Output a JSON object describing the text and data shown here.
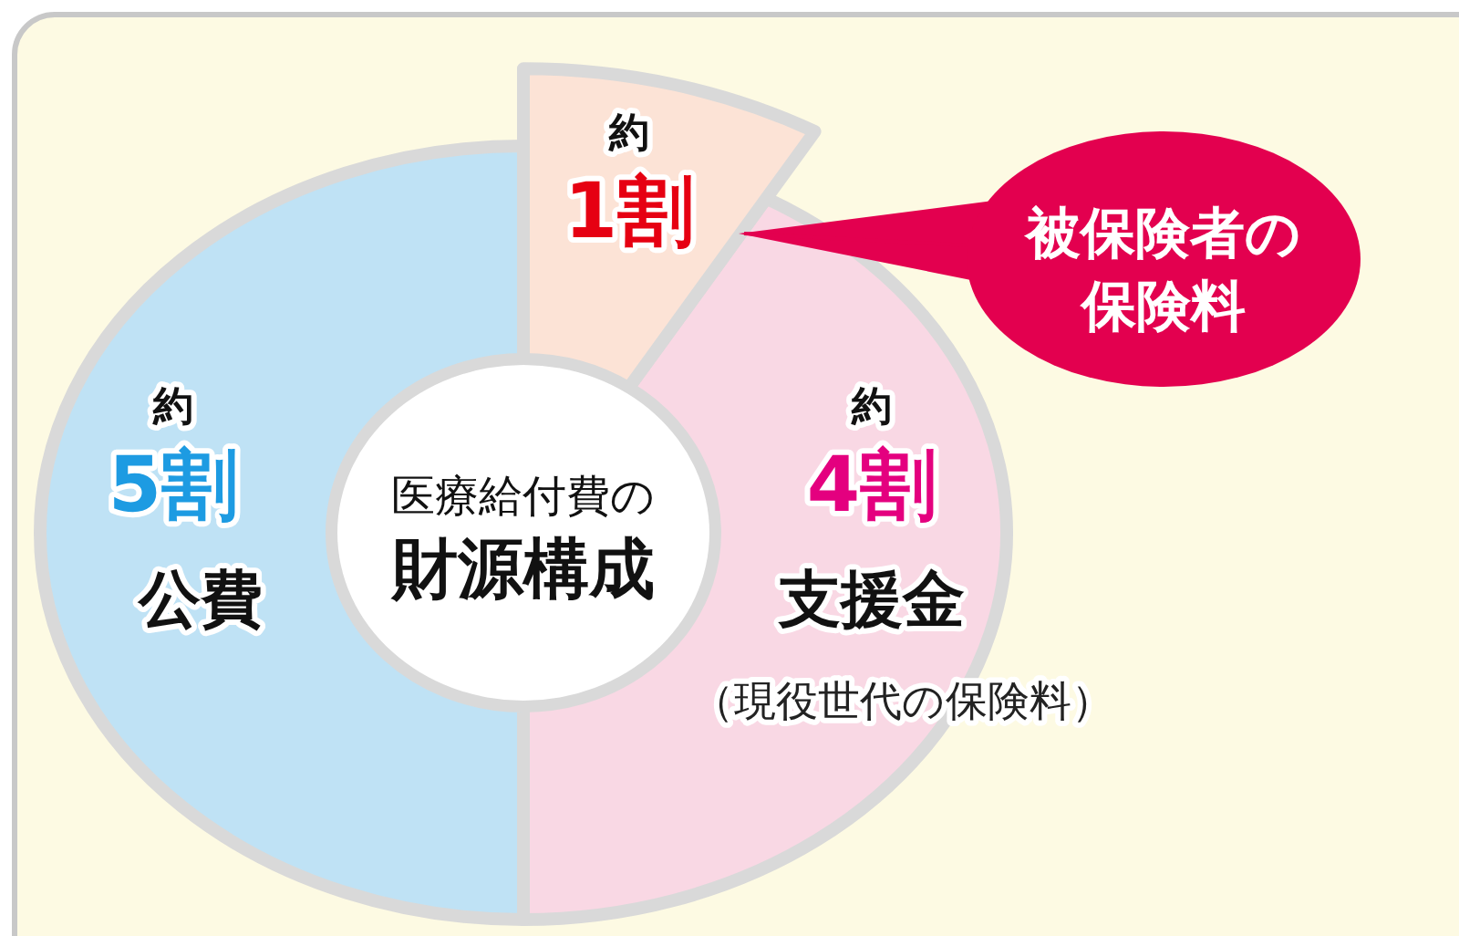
{
  "chart_data": {
    "type": "donut",
    "title": "医療給付費の財源構成",
    "categories": [
      "被保険者の保険料",
      "支援金",
      "公費"
    ],
    "values": [
      10,
      40,
      50
    ],
    "value_labels": [
      "約1割",
      "約4割",
      "約5割"
    ],
    "colors": [
      "#fce3d6",
      "#f9d8e4",
      "#bfe2f5"
    ],
    "annotations": [
      "（現役世代の保険料）"
    ]
  }
}
